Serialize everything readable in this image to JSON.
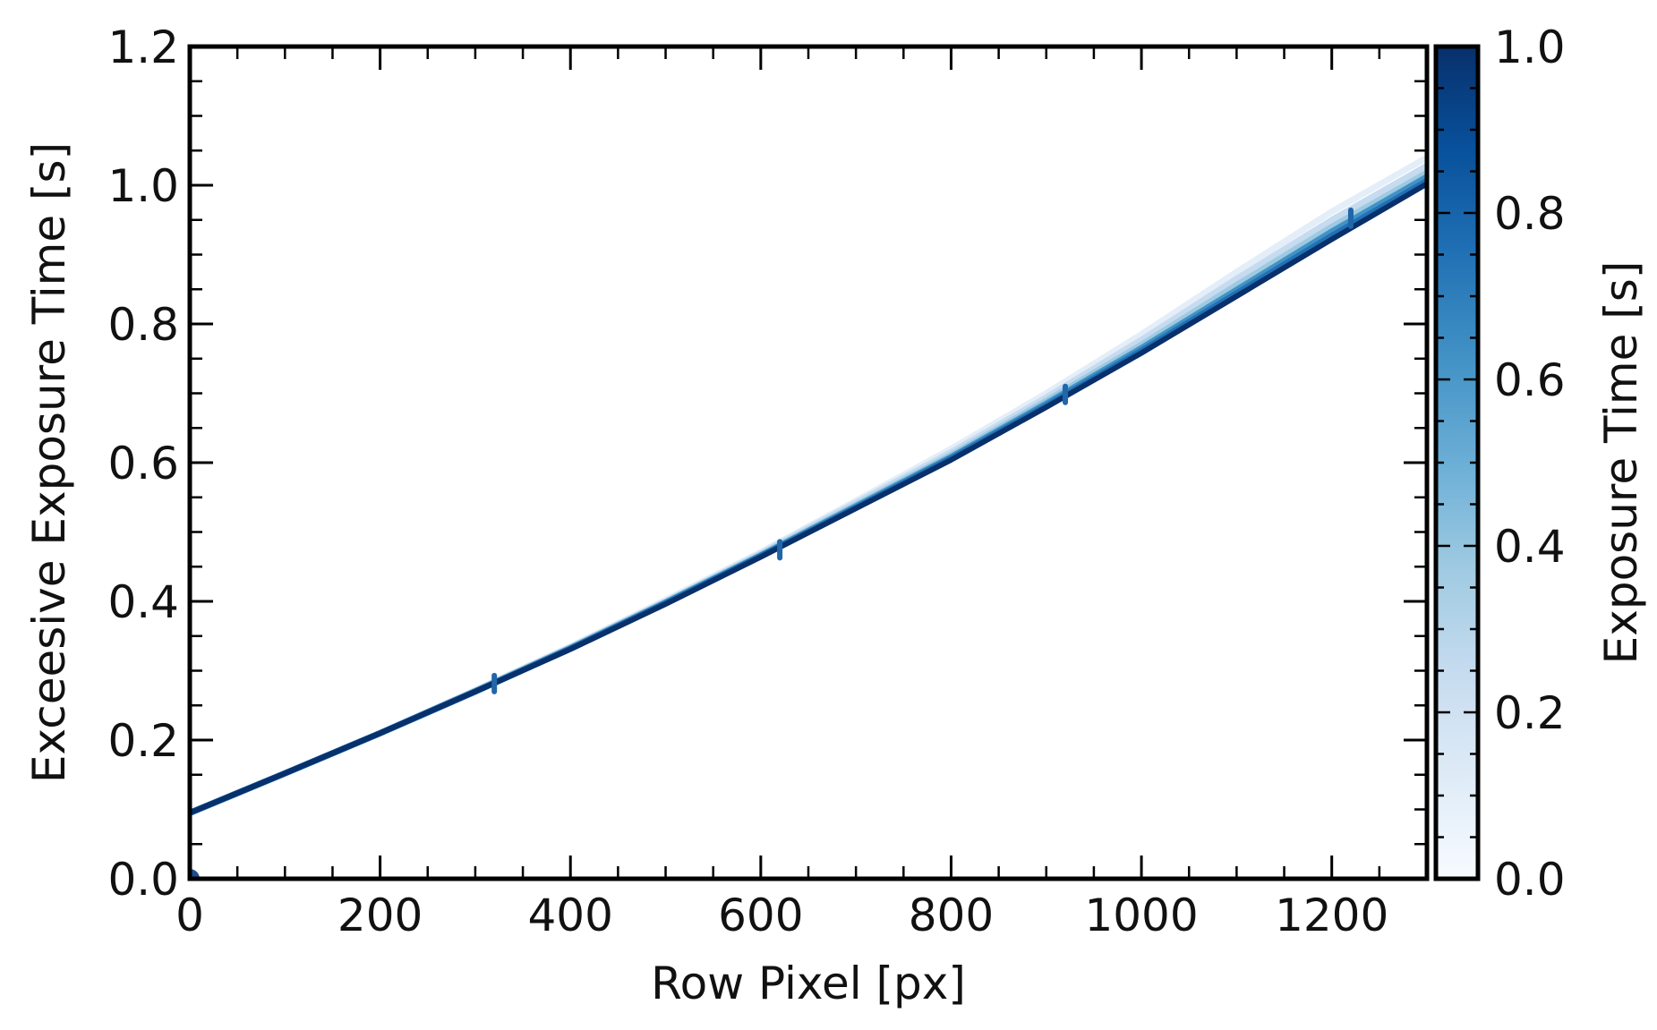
{
  "chart_data": {
    "type": "line",
    "title": "",
    "xlabel": "Row Pixel [px]",
    "ylabel": "Exceesive Exposure Time [s]",
    "xlim": [
      0,
      1300
    ],
    "ylim": [
      0,
      1.2
    ],
    "x_ticks": [
      "0",
      "200",
      "400",
      "600",
      "800",
      "1000",
      "1200"
    ],
    "y_ticks": [
      "0.0",
      "0.2",
      "0.4",
      "0.6",
      "0.8",
      "1.0",
      "1.2"
    ],
    "grid": false,
    "colorbar": {
      "label": "Exposure Time [s]",
      "range": [
        0,
        1.0
      ],
      "ticks": [
        "0.0",
        "0.2",
        "0.4",
        "0.6",
        "0.8",
        "1.0"
      ],
      "colormap": [
        "#f7fbff",
        "#deebf7",
        "#c6dbef",
        "#9ecae1",
        "#6baed6",
        "#4292c6",
        "#2171b5",
        "#08519c",
        "#08306b"
      ]
    },
    "series": [
      {
        "exposure": 0.0,
        "color": "#e3eef9",
        "x": [
          0,
          100,
          200,
          300,
          400,
          500,
          600,
          700,
          800,
          900,
          1000,
          1100,
          1200,
          1300
        ],
        "y": [
          0.095,
          0.152,
          0.21,
          0.272,
          0.335,
          0.402,
          0.471,
          0.545,
          0.62,
          0.7,
          0.785,
          0.875,
          0.962,
          1.04
        ]
      },
      {
        "exposure": 0.2,
        "color": "#c6dbef",
        "x": [
          0,
          100,
          200,
          300,
          400,
          500,
          600,
          700,
          800,
          900,
          1000,
          1100,
          1200,
          1300
        ],
        "y": [
          0.095,
          0.152,
          0.21,
          0.271,
          0.334,
          0.4,
          0.469,
          0.542,
          0.615,
          0.694,
          0.777,
          0.865,
          0.95,
          1.028
        ]
      },
      {
        "exposure": 0.4,
        "color": "#9ecae1",
        "x": [
          0,
          100,
          200,
          300,
          400,
          500,
          600,
          700,
          800,
          900,
          1000,
          1100,
          1200,
          1300
        ],
        "y": [
          0.095,
          0.152,
          0.21,
          0.271,
          0.333,
          0.399,
          0.467,
          0.539,
          0.611,
          0.689,
          0.77,
          0.856,
          0.94,
          1.018
        ]
      },
      {
        "exposure": 0.6,
        "color": "#4292c6",
        "x": [
          0,
          100,
          200,
          300,
          400,
          500,
          600,
          700,
          800,
          900,
          1000,
          1100,
          1200,
          1300
        ],
        "y": [
          0.095,
          0.152,
          0.21,
          0.27,
          0.332,
          0.398,
          0.466,
          0.537,
          0.608,
          0.685,
          0.765,
          0.849,
          0.933,
          1.012
        ]
      },
      {
        "exposure": 0.8,
        "color": "#2171b5",
        "x": [
          0,
          100,
          200,
          300,
          400,
          500,
          600,
          700,
          800,
          900,
          1000,
          1100,
          1200,
          1300
        ],
        "y": [
          0.095,
          0.152,
          0.21,
          0.27,
          0.332,
          0.397,
          0.465,
          0.535,
          0.606,
          0.682,
          0.761,
          0.844,
          0.927,
          1.006
        ]
      },
      {
        "exposure": 1.0,
        "color": "#08306b",
        "x": [
          0,
          100,
          200,
          300,
          400,
          500,
          600,
          700,
          800,
          900,
          1000,
          1100,
          1200,
          1300
        ],
        "y": [
          0.095,
          0.152,
          0.21,
          0.27,
          0.331,
          0.396,
          0.464,
          0.534,
          0.604,
          0.68,
          0.758,
          0.84,
          0.922,
          1.002
        ]
      }
    ],
    "spikes": [
      {
        "x": 320,
        "y": 0.293
      },
      {
        "x": 620,
        "y": 0.486
      },
      {
        "x": 920,
        "y": 0.71
      },
      {
        "x": 1220,
        "y": 0.964
      }
    ]
  }
}
